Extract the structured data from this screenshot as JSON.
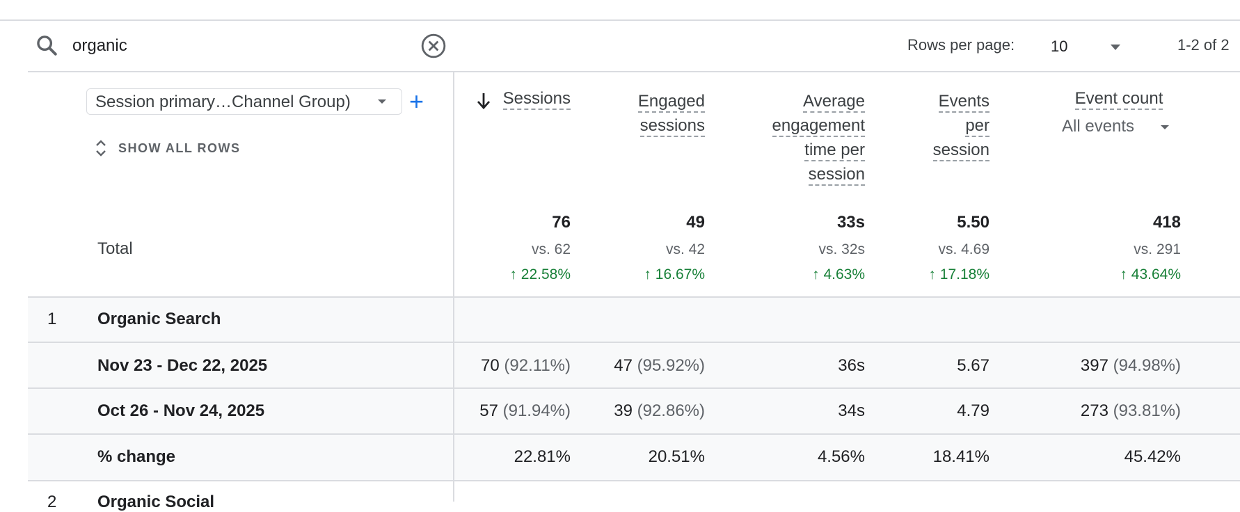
{
  "toolbar": {
    "search_value": "organic",
    "rows_per_page_label": "Rows per page:",
    "rows_per_page_value": "10",
    "pagination": "1-2 of 2"
  },
  "dimension": {
    "selector_label": "Session primary…Channel Group)",
    "add_icon": "+",
    "show_all_rows": "SHOW ALL ROWS"
  },
  "columns": {
    "sessions": [
      "Sessions"
    ],
    "engaged_sessions": [
      "Engaged",
      "sessions"
    ],
    "avg_engagement": [
      "Average",
      "engagement",
      "time per",
      "session"
    ],
    "events_per_session": [
      "Events",
      "per",
      "session"
    ],
    "event_count": "Event count",
    "event_count_filter": "All events"
  },
  "totals": {
    "label": "Total",
    "sessions": {
      "value": "76",
      "vs": "vs. 62",
      "change": "22.58%"
    },
    "engaged_sessions": {
      "value": "49",
      "vs": "vs. 42",
      "change": "16.67%"
    },
    "avg_engagement": {
      "value": "33s",
      "vs": "vs. 32s",
      "change": "4.63%"
    },
    "events_per_session": {
      "value": "5.50",
      "vs": "vs. 4.69",
      "change": "17.18%"
    },
    "event_count": {
      "value": "418",
      "vs": "vs. 291",
      "change": "43.64%"
    }
  },
  "rows": [
    {
      "index": "1",
      "name": "Organic Search",
      "periods": [
        {
          "label": "Nov 23 - Dec 22, 2025",
          "sessions": "70",
          "sessions_pct": "(92.11%)",
          "engaged": "47",
          "engaged_pct": "(95.92%)",
          "avg_time": "36s",
          "events_per_session": "5.67",
          "event_count": "397",
          "event_count_pct": "(94.98%)"
        },
        {
          "label": "Oct 26 - Nov 24, 2025",
          "sessions": "57",
          "sessions_pct": "(91.94%)",
          "engaged": "39",
          "engaged_pct": "(92.86%)",
          "avg_time": "34s",
          "events_per_session": "4.79",
          "event_count": "273",
          "event_count_pct": "(93.81%)"
        }
      ],
      "change": {
        "label": "% change",
        "sessions": "22.81%",
        "engaged": "20.51%",
        "avg_time": "4.56%",
        "events_per_session": "18.41%",
        "event_count": "45.42%"
      }
    },
    {
      "index": "2",
      "name": "Organic Social"
    }
  ],
  "colors": {
    "accent": "#1a73e8",
    "positive": "#188038",
    "row_band": "#f8f9fa",
    "divider": "#dadce0"
  },
  "icons": {
    "search": "search-icon",
    "clear": "clear-circle-icon",
    "dropdown": "caret-down-icon",
    "sort": "arrow-down-icon",
    "expand": "unfold-icon",
    "trend_up": "arrow-up-icon"
  }
}
